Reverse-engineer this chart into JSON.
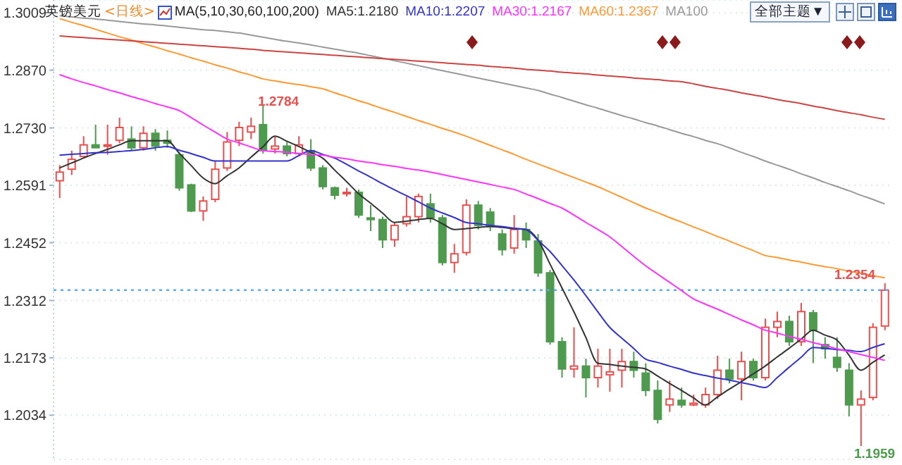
{
  "chart_data": {
    "type": "candlestick",
    "title": "英镑美元",
    "subtitle": "<日线>",
    "annotations": [
      "MA(5,10,30,60,100,200)",
      "全部主题▼",
      "1.2784",
      "1.2354",
      "1.1959"
    ],
    "categories": [
      null,
      null,
      null,
      null,
      null,
      null,
      null,
      null,
      null,
      null,
      null,
      null,
      null,
      null,
      null,
      null,
      null,
      null,
      null,
      null,
      null,
      null,
      null,
      null,
      null,
      null,
      null,
      null,
      null,
      null,
      null,
      null,
      null,
      null,
      null,
      null,
      null,
      null,
      null,
      null,
      null,
      null,
      null,
      null,
      null,
      null,
      null,
      null,
      null,
      null,
      null,
      null,
      null,
      null,
      null,
      null,
      null,
      null,
      null,
      null,
      null,
      null,
      null,
      null,
      null,
      null,
      null,
      null,
      null,
      null
    ],
    "ohlc": [
      [
        1.2602,
        1.264,
        1.256,
        1.2623
      ],
      [
        1.263,
        1.2675,
        1.2616,
        1.2654
      ],
      [
        1.2661,
        1.271,
        1.2658,
        1.2689
      ],
      [
        1.2689,
        1.2738,
        1.2682,
        1.2682
      ],
      [
        1.2686,
        1.2738,
        1.2665,
        1.2689
      ],
      [
        1.27,
        1.2755,
        1.2693,
        1.2731
      ],
      [
        1.2703,
        1.2734,
        1.2675,
        1.2682
      ],
      [
        1.2682,
        1.2734,
        1.2675,
        1.2717
      ],
      [
        1.2717,
        1.2727,
        1.2675,
        1.2686
      ],
      [
        1.27,
        1.2724,
        1.2682,
        1.2693
      ],
      [
        1.2665,
        1.2672,
        1.2578,
        1.2585
      ],
      [
        1.2592,
        1.2595,
        1.2526,
        1.2529
      ],
      [
        1.2529,
        1.2564,
        1.2505,
        1.2553
      ],
      [
        1.2557,
        1.2651,
        1.255,
        1.263
      ],
      [
        1.2633,
        1.272,
        1.2626,
        1.2696
      ],
      [
        1.27,
        1.2745,
        1.2686,
        1.2731
      ],
      [
        1.272,
        1.2755,
        1.2703,
        1.2734
      ],
      [
        1.2738,
        1.2784,
        1.2668,
        1.2675
      ],
      [
        1.2679,
        1.271,
        1.2668,
        1.2686
      ],
      [
        1.2686,
        1.2696,
        1.2661,
        1.2668
      ],
      [
        1.2668,
        1.271,
        1.2661,
        1.2689
      ],
      [
        1.2675,
        1.2703,
        1.2626,
        1.2633
      ],
      [
        1.2633,
        1.264,
        1.2581,
        1.2588
      ],
      [
        1.2585,
        1.2588,
        1.2557,
        1.2567
      ],
      [
        1.2571,
        1.2585,
        1.2564,
        1.2574
      ],
      [
        1.2574,
        1.2581,
        1.2512,
        1.2519
      ],
      [
        1.2512,
        1.2543,
        1.248,
        1.2508
      ],
      [
        1.2508,
        1.2515,
        1.2439,
        1.2459
      ],
      [
        1.2459,
        1.2501,
        1.2442,
        1.2494
      ],
      [
        1.2498,
        1.2564,
        1.2491,
        1.2515
      ],
      [
        1.2515,
        1.2571,
        1.2501,
        1.2564
      ],
      [
        1.2546,
        1.2571,
        1.2501,
        1.2512
      ],
      [
        1.2512,
        1.2519,
        1.2397,
        1.2404
      ],
      [
        1.2404,
        1.2449,
        1.2379,
        1.2425
      ],
      [
        1.2428,
        1.2557,
        1.2421,
        1.2543
      ],
      [
        1.2543,
        1.2553,
        1.2484,
        1.2494
      ],
      [
        1.2526,
        1.2536,
        1.248,
        1.2491
      ],
      [
        1.2473,
        1.2484,
        1.2421,
        1.2435
      ],
      [
        1.2439,
        1.2519,
        1.2425,
        1.2484
      ],
      [
        1.2484,
        1.2501,
        1.2439,
        1.2459
      ],
      [
        1.2456,
        1.2473,
        1.2369,
        1.2379
      ],
      [
        1.2379,
        1.2386,
        1.2205,
        1.2212
      ],
      [
        1.2212,
        1.2223,
        1.2125,
        1.2146
      ],
      [
        1.2146,
        1.2247,
        1.2125,
        1.2153
      ],
      [
        1.2153,
        1.2171,
        1.2077,
        1.2125
      ],
      [
        1.2125,
        1.2195,
        1.2101,
        1.2153
      ],
      [
        1.2132,
        1.2195,
        1.2091,
        1.2139
      ],
      [
        1.2143,
        1.2195,
        1.2101,
        1.2164
      ],
      [
        1.2164,
        1.2188,
        1.2125,
        1.2143
      ],
      [
        1.2136,
        1.216,
        1.208,
        1.2094
      ],
      [
        1.2094,
        1.2118,
        1.2014,
        1.2024
      ],
      [
        1.2059,
        1.2118,
        1.2042,
        1.2073
      ],
      [
        1.207,
        1.2101,
        1.2052,
        1.2059
      ],
      [
        1.2059,
        1.2084,
        1.2056,
        1.2063
      ],
      [
        1.2059,
        1.2101,
        1.2052,
        1.2084
      ],
      [
        1.2084,
        1.2178,
        1.2073,
        1.2143
      ],
      [
        1.2143,
        1.2171,
        1.2111,
        1.2122
      ],
      [
        1.2122,
        1.2188,
        1.207,
        1.2164
      ],
      [
        1.2164,
        1.2171,
        1.2118,
        1.2125
      ],
      [
        1.2125,
        1.2268,
        1.2118,
        1.2247
      ],
      [
        1.2247,
        1.2285,
        1.2223,
        1.2261
      ],
      [
        1.2261,
        1.2275,
        1.2202,
        1.2212
      ],
      [
        1.2212,
        1.2306,
        1.2202,
        1.2285
      ],
      [
        1.2282,
        1.2289,
        1.216,
        1.224
      ],
      [
        1.2205,
        1.2223,
        1.2171,
        1.2195
      ],
      [
        1.2174,
        1.2223,
        1.2139,
        1.215
      ],
      [
        1.2143,
        1.216,
        1.2031,
        1.2059
      ],
      [
        1.2059,
        1.2094,
        1.1959,
        1.2073
      ],
      [
        1.2077,
        1.2257,
        1.207,
        1.2247
      ],
      [
        1.225,
        1.2354,
        1.224,
        1.2337
      ]
    ],
    "colors": [
      "#e8504f",
      "#e8504f",
      "#e8504f",
      "#4e9a4e",
      "#e8504f",
      "#e8504f",
      "#4e9a4e",
      "#e8504f",
      "#4e9a4e",
      "#4e9a4e",
      "#4e9a4e",
      "#4e9a4e",
      "#e8504f",
      "#e8504f",
      "#e8504f",
      "#e8504f",
      "#e8504f",
      "#4e9a4e",
      "#e8504f",
      "#4e9a4e",
      "#e8504f",
      "#4e9a4e",
      "#4e9a4e",
      "#4e9a4e",
      "#e8504f",
      "#4e9a4e",
      "#4e9a4e",
      "#4e9a4e",
      "#e8504f",
      "#e8504f",
      "#e8504f",
      "#4e9a4e",
      "#4e9a4e",
      "#e8504f",
      "#e8504f",
      "#4e9a4e",
      "#4e9a4e",
      "#4e9a4e",
      "#e8504f",
      "#4e9a4e",
      "#4e9a4e",
      "#4e9a4e",
      "#4e9a4e",
      "#e8504f",
      "#4e9a4e",
      "#e8504f",
      "#e8504f",
      "#e8504f",
      "#4e9a4e",
      "#4e9a4e",
      "#4e9a4e",
      "#e8504f",
      "#4e9a4e",
      "#e8504f",
      "#e8504f",
      "#e8504f",
      "#4e9a4e",
      "#e8504f",
      "#4e9a4e",
      "#e8504f",
      "#e8504f",
      "#4e9a4e",
      "#e8504f",
      "#4e9a4e",
      "#4e9a4e",
      "#4e9a4e",
      "#4e9a4e",
      "#e8504f",
      "#e8504f",
      "#e8504f"
    ],
    "series": [
      {
        "type": "line",
        "name": "MA5:1.2180",
        "color": "#333333",
        "values": [
          1.2633,
          1.2645,
          1.2657,
          1.2668,
          1.2678,
          1.2689,
          1.2699,
          1.2699,
          1.2699,
          1.2699,
          1.2669,
          1.2639,
          1.2609,
          1.2595,
          1.2614,
          1.2633,
          1.2659,
          1.2684,
          1.271,
          1.2698,
          1.2685,
          1.2671,
          1.2657,
          1.2628,
          1.26,
          1.2571,
          1.2548,
          1.2524,
          1.2501,
          1.2504,
          1.2508,
          1.2511,
          1.2498,
          1.2484,
          1.2486,
          1.2489,
          1.2491,
          1.2489,
          1.2486,
          1.2484,
          1.2459,
          1.2401,
          1.2343,
          1.2285,
          1.2223,
          1.216,
          1.2157,
          1.2153,
          1.215,
          1.2146,
          1.2129,
          1.2111,
          1.2094,
          1.2076,
          1.2059,
          1.2078,
          1.2097,
          1.2115,
          1.2134,
          1.2153,
          1.2175,
          1.2196,
          1.2218,
          1.224,
          1.2228,
          1.2216,
          1.218,
          1.2143,
          1.2162,
          1.218
        ]
      },
      {
        "type": "line",
        "name": "MA10:1.2207",
        "color": "#3333cc",
        "values": [
          1.2664,
          1.2666,
          1.2668,
          1.267,
          1.2671,
          1.2673,
          1.2675,
          1.2678,
          1.2682,
          1.2685,
          1.2676,
          1.2668,
          1.2659,
          1.265,
          1.265,
          1.265,
          1.265,
          1.265,
          1.265,
          1.265,
          1.2663,
          1.2675,
          1.2666,
          1.2657,
          1.2642,
          1.2626,
          1.2611,
          1.2595,
          1.258,
          1.2566,
          1.2551,
          1.2536,
          1.2524,
          1.2513,
          1.2501,
          1.2498,
          1.2494,
          1.2491,
          1.2487,
          1.2484,
          1.2458,
          1.2431,
          1.2397,
          1.2362,
          1.2324,
          1.2285,
          1.2247,
          1.2221,
          1.2196,
          1.217,
          1.2162,
          1.2153,
          1.2145,
          1.2136,
          1.213,
          1.2124,
          1.2119,
          1.2113,
          1.2107,
          1.2101,
          1.2125,
          1.215,
          1.2174,
          1.2198,
          1.2196,
          1.2193,
          1.2191,
          1.2188,
          1.2198,
          1.2207
        ]
      },
      {
        "type": "line",
        "name": "MA30:1.2167",
        "color": "#ff33ff",
        "values": [
          1.2859,
          1.2849,
          1.284,
          1.2832,
          1.2823,
          1.2815,
          1.2806,
          1.2798,
          1.2789,
          1.2781,
          1.2772,
          1.2755,
          1.2737,
          1.272,
          1.2703,
          1.2694,
          1.2684,
          1.2675,
          1.2673,
          1.2671,
          1.2668,
          1.2666,
          1.2664,
          1.2659,
          1.2655,
          1.265,
          1.2646,
          1.2641,
          1.2637,
          1.2632,
          1.2628,
          1.2623,
          1.2617,
          1.2611,
          1.2605,
          1.2599,
          1.2593,
          1.2587,
          1.2581,
          1.257,
          1.2559,
          1.2547,
          1.2536,
          1.2519,
          1.2501,
          1.2484,
          1.2466,
          1.2443,
          1.2419,
          1.2396,
          1.2376,
          1.2356,
          1.2336,
          1.2316,
          1.2303,
          1.2291,
          1.2278,
          1.2265,
          1.2253,
          1.224,
          1.2233,
          1.2225,
          1.2218,
          1.221,
          1.2203,
          1.2195,
          1.2188,
          1.2181,
          1.2174,
          1.2167
        ]
      },
      {
        "type": "line",
        "name": "MA60:1.2367",
        "color": "#ff9933",
        "values": [
          1.2995,
          1.2986,
          1.2978,
          1.2969,
          1.296,
          1.2951,
          1.2943,
          1.2934,
          1.2926,
          1.2917,
          1.2909,
          1.29,
          1.2892,
          1.2883,
          1.2875,
          1.2866,
          1.2858,
          1.2849,
          1.2844,
          1.2839,
          1.2835,
          1.283,
          1.2825,
          1.2815,
          1.2806,
          1.2796,
          1.2787,
          1.2777,
          1.2768,
          1.2758,
          1.2748,
          1.2739,
          1.2729,
          1.272,
          1.271,
          1.2699,
          1.2688,
          1.2677,
          1.2666,
          1.2654,
          1.2643,
          1.2632,
          1.2621,
          1.261,
          1.2599,
          1.2588,
          1.2575,
          1.2562,
          1.2549,
          1.2536,
          1.2525,
          1.2513,
          1.2502,
          1.249,
          1.2479,
          1.2467,
          1.2456,
          1.2444,
          1.2433,
          1.2421,
          1.2416,
          1.241,
          1.2405,
          1.2399,
          1.2394,
          1.2389,
          1.2383,
          1.2378,
          1.2372,
          1.2367
        ]
      },
      {
        "type": "line",
        "name": "MA100",
        "color": "#999999",
        "values": [
          1.3002,
          1.2999,
          1.2996,
          1.2994,
          1.2991,
          1.2988,
          1.2985,
          1.2982,
          1.298,
          1.2977,
          1.2974,
          1.2971,
          1.2968,
          1.2966,
          1.2963,
          1.296,
          1.2955,
          1.295,
          1.2945,
          1.294,
          1.2936,
          1.2931,
          1.2926,
          1.2921,
          1.2916,
          1.2911,
          1.2905,
          1.2899,
          1.2893,
          1.2887,
          1.2881,
          1.2875,
          1.2869,
          1.2863,
          1.2857,
          1.2851,
          1.2845,
          1.2839,
          1.2833,
          1.2827,
          1.2821,
          1.2812,
          1.2804,
          1.2795,
          1.2786,
          1.2778,
          1.2769,
          1.276,
          1.2752,
          1.2743,
          1.2735,
          1.2726,
          1.2717,
          1.2709,
          1.27,
          1.2692,
          1.2682,
          1.2671,
          1.2661,
          1.265,
          1.264,
          1.263,
          1.2619,
          1.2609,
          1.2598,
          1.2588,
          1.2578,
          1.2567,
          1.2557,
          1.2546
        ]
      },
      {
        "type": "line",
        "color": "#cc4444",
        "values": [
          1.2953,
          1.2951,
          1.2949,
          1.2947,
          1.2945,
          1.2943,
          1.2941,
          1.2939,
          1.2937,
          1.2935,
          1.2933,
          1.2931,
          1.2929,
          1.2927,
          1.2925,
          1.2923,
          1.2921,
          1.2918,
          1.2916,
          1.2914,
          1.2912,
          1.291,
          1.2908,
          1.2906,
          1.2904,
          1.2902,
          1.29,
          1.2898,
          1.2896,
          1.2894,
          1.2892,
          1.289,
          1.2888,
          1.2886,
          1.2884,
          1.2882,
          1.2879,
          1.2877,
          1.2875,
          1.2872,
          1.287,
          1.2868,
          1.2865,
          1.2863,
          1.2861,
          1.2858,
          1.2856,
          1.2854,
          1.2851,
          1.2849,
          1.2847,
          1.2844,
          1.2842,
          1.2837,
          1.2831,
          1.2826,
          1.2821,
          1.2815,
          1.281,
          1.2805,
          1.2799,
          1.2794,
          1.2789,
          1.2783,
          1.2778,
          1.2772,
          1.2767,
          1.2762,
          1.2756,
          1.2751
        ]
      }
    ],
    "ylim": [
      1.1927,
      1.304
    ],
    "yticks": [
      1.3009,
      {
        "value": 1.287,
        "label": "1.2870"
      },
      {
        "value": 1.273,
        "label": "1.2730"
      },
      1.2591,
      1.2452,
      1.2312,
      1.2173,
      1.2034
    ],
    "ref_lines": [
      {
        "axis": "y",
        "value": 1.2337,
        "color": "#5aabf0",
        "line_style": "dotted"
      }
    ],
    "grid": "y",
    "legend": "top",
    "tick_labels": "y",
    "marker": "none",
    "line_style": "solid"
  }
}
